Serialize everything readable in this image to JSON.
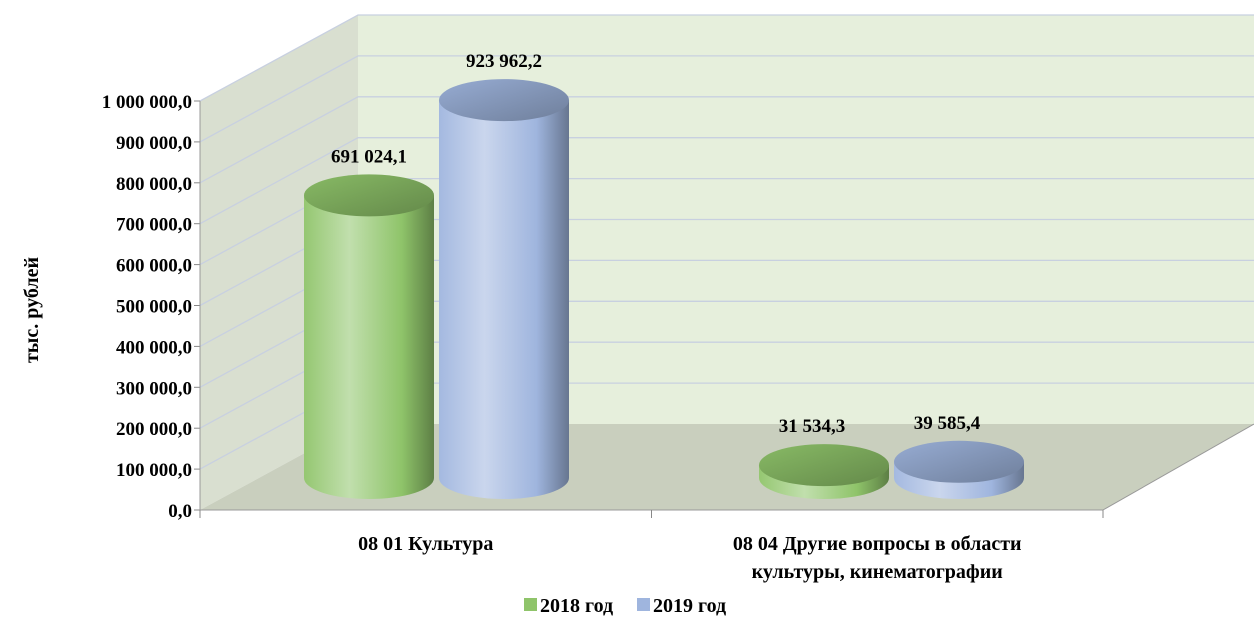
{
  "chart_data": {
    "type": "bar",
    "style": "3d-cylinder",
    "categories": [
      [
        "08 01 Культура"
      ],
      [
        "08 04 Другие вопросы в области",
        "культуры, кинематографии"
      ]
    ],
    "series": [
      {
        "name": "2018 год",
        "values": [
          691024.1,
          31534.3
        ],
        "labels": [
          "691 024,1",
          "31 534,3"
        ],
        "color": "#8fc46a"
      },
      {
        "name": "2019 год",
        "values": [
          923962.2,
          39585.4
        ],
        "labels": [
          "923 962,2",
          "39 585,4"
        ],
        "color": "#9fb5de"
      }
    ],
    "ylabel": "тыс. рублей",
    "ylim": [
      0,
      1000000
    ],
    "ytick_step": 100000,
    "yticks": [
      "0,0",
      "100 000,0",
      "200 000,0",
      "300 000,0",
      "400 000,0",
      "500 000,0",
      "600 000,0",
      "700 000,0",
      "800 000,0",
      "900 000,0",
      "1 000 000,0"
    ],
    "grid": true,
    "legend": "bottom",
    "colors": {
      "wall": "#e6efdc",
      "side_wall": "#d9dfd0",
      "floor": "#c9cfbe",
      "grid": "#c8d0e0"
    }
  }
}
